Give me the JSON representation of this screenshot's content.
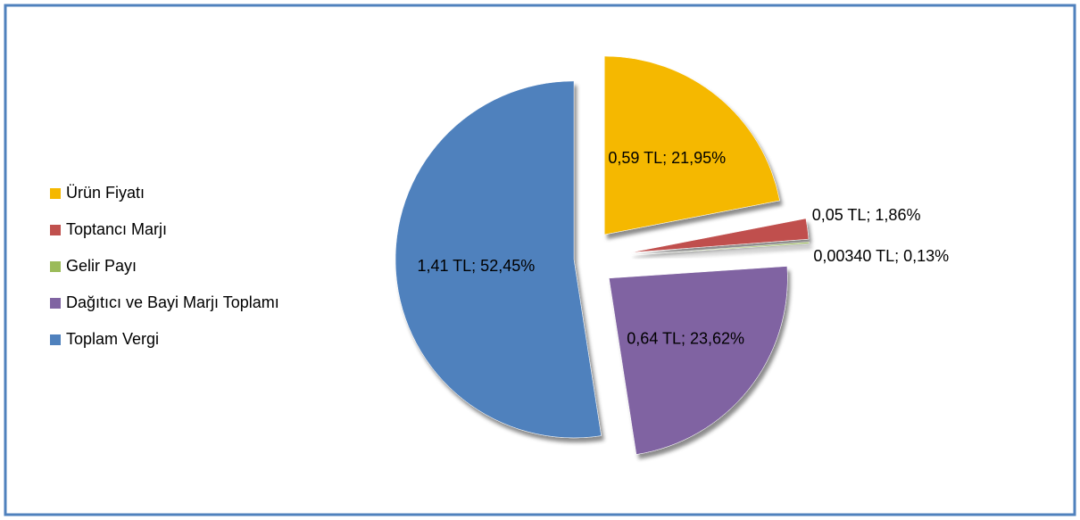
{
  "chart_data": {
    "type": "pie",
    "categories": [
      "Ürün Fiyatı",
      "Toptancı Marjı",
      "Gelir Payı",
      "Dağıtıcı ve Bayi Marjı Toplamı",
      "Toplam Vergi"
    ],
    "values": [
      21.95,
      1.86,
      0.13,
      23.62,
      52.45
    ],
    "value_labels": [
      "0,59 TL; 21,95%",
      "0,05 TL; 1,86%",
      "0,00340 TL; 0,13%",
      "0,64 TL; 23,62%",
      "1,41 TL; 52,45%"
    ],
    "colors": [
      "#f5b800",
      "#c0504d",
      "#9bbb59",
      "#8064a2",
      "#4f81bd"
    ],
    "legend": "left"
  }
}
